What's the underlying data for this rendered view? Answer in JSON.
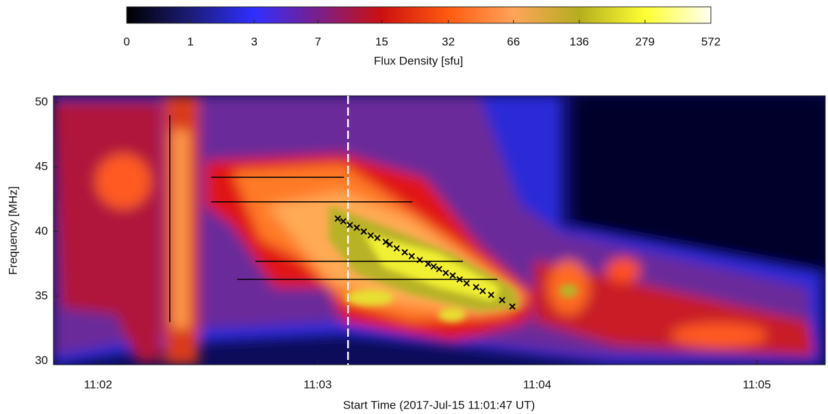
{
  "chart_data": {
    "type": "spectrogram",
    "xlabel": "Start Time (2017-Jul-15 11:01:47 UT)",
    "ylabel": "Frequency [MHz]",
    "xlim": [
      0.8,
      211.7
    ],
    "ylim": [
      29.7,
      50.5
    ],
    "xticks": [
      {
        "value": 13,
        "label": "11:02"
      },
      {
        "value": 73,
        "label": "11:03"
      },
      {
        "value": 133,
        "label": "11:04"
      },
      {
        "value": 193,
        "label": "11:05"
      }
    ],
    "yticks": [
      30,
      35,
      40,
      45,
      50
    ],
    "colorbar": {
      "label": "Flux Density  [sfu]",
      "lim": [
        0,
        572
      ],
      "scale": "log1p",
      "ticks": [
        0,
        1,
        3,
        7,
        15,
        32,
        66,
        136,
        279,
        572
      ],
      "colors": [
        "#000000",
        "#1c1c78",
        "#2f2fff",
        "#7a1f8a",
        "#cc1010",
        "#ff5a10",
        "#ffa45a",
        "#b4ae1e",
        "#ffff33",
        "#fffff2"
      ]
    },
    "vline": {
      "x": 81.3,
      "color": "#ffffff"
    },
    "segments": [
      {
        "x": [
          32.6,
          32.6
        ],
        "y": [
          33,
          49
        ]
      },
      {
        "x": [
          43.9,
          80.2
        ],
        "y": [
          44.2,
          44.2
        ]
      },
      {
        "x": [
          43.9,
          98.9
        ],
        "y": [
          42.3,
          42.3
        ]
      },
      {
        "x": [
          56.0,
          112.7
        ],
        "y": [
          37.7,
          37.7
        ]
      },
      {
        "x": [
          51.0,
          122.1
        ],
        "y": [
          36.3,
          36.3
        ]
      }
    ],
    "markers": {
      "x": [
        78.5,
        80.0,
        81.8,
        83.7,
        85.6,
        87.5,
        89.3,
        91.6,
        92.7,
        94.6,
        96.8,
        98.7,
        100.9,
        103.2,
        104.7,
        106.2,
        108.0,
        109.9,
        111.8,
        113.7,
        116.3,
        118.1,
        120.4,
        123.4,
        126.2
      ],
      "values": [
        41.0,
        40.8,
        40.5,
        40.3,
        40.0,
        39.7,
        39.5,
        39.2,
        39.0,
        38.7,
        38.4,
        38.1,
        37.8,
        37.5,
        37.3,
        37.1,
        36.8,
        36.6,
        36.3,
        36.0,
        35.7,
        35.4,
        35.1,
        34.7,
        34.2
      ]
    }
  }
}
